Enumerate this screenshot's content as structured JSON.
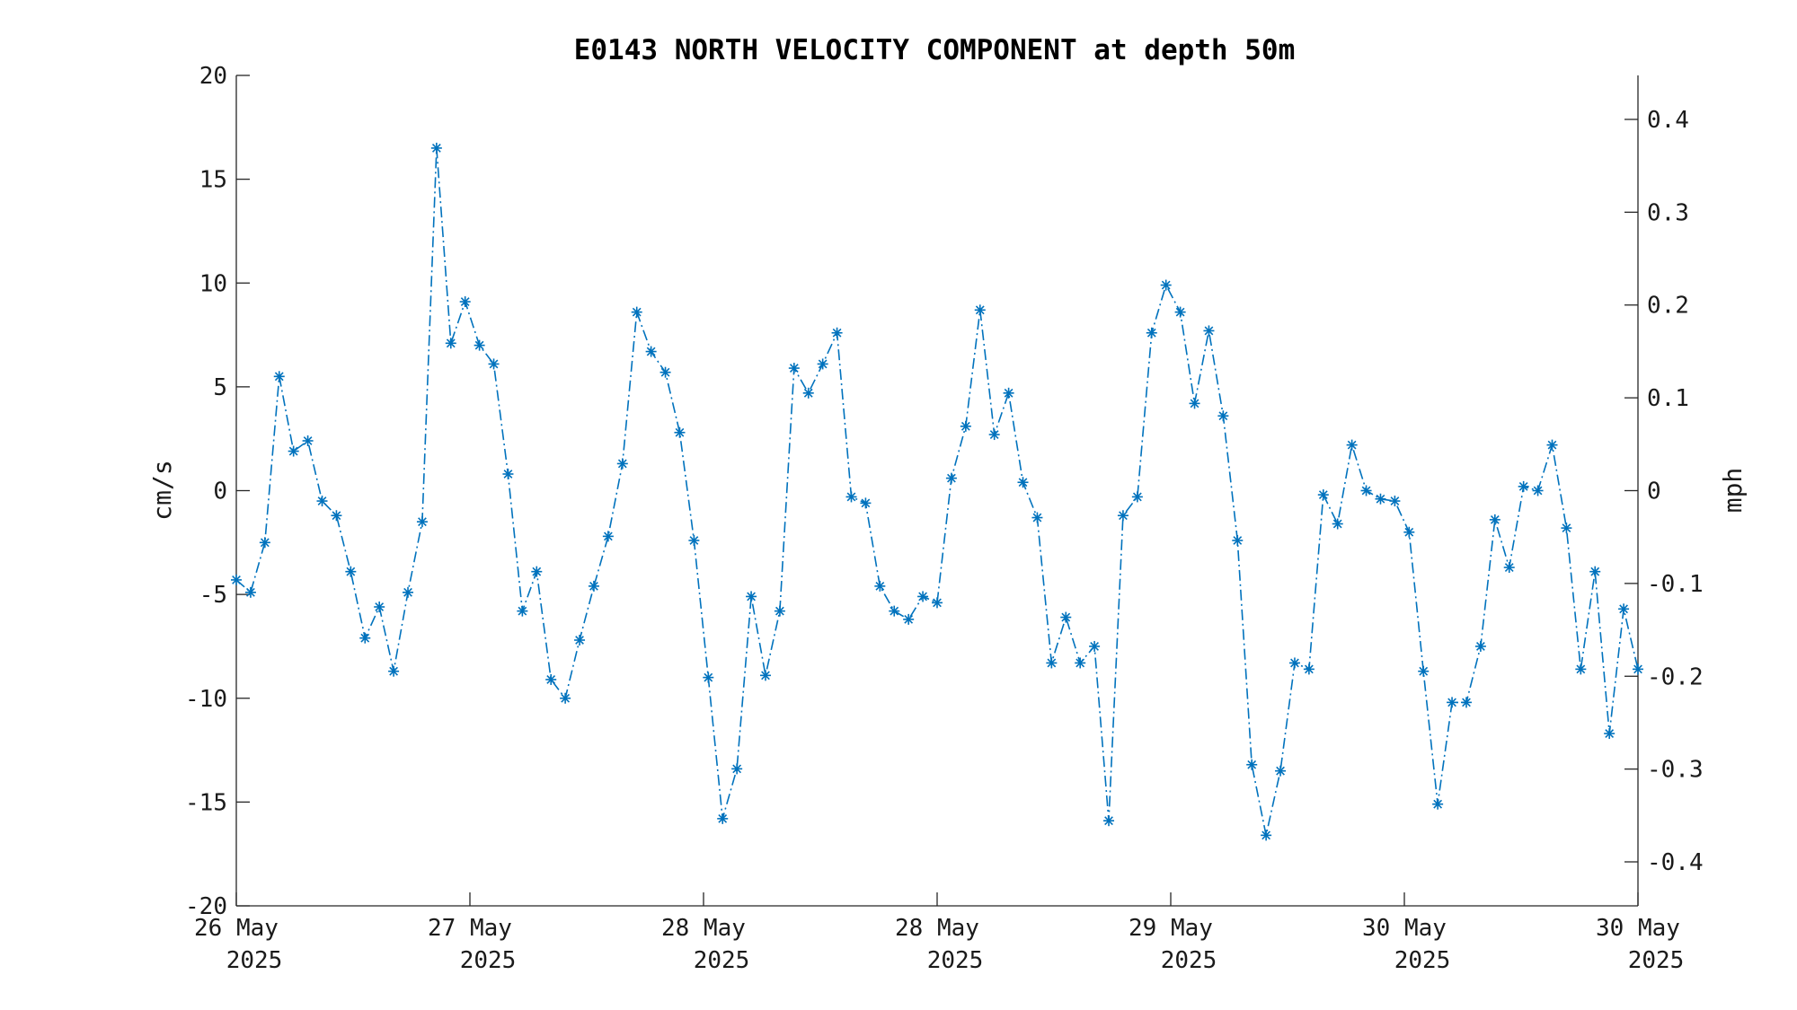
{
  "chart_data": {
    "type": "line",
    "title": "E0143 NORTH VELOCITY COMPONENT at depth 50m",
    "ylabel": "cm/s",
    "y2label": "mph",
    "ylim": [
      -20,
      20
    ],
    "y2lim": [
      -0.4474,
      0.4474
    ],
    "yticks": [
      "20",
      "15",
      "10",
      "5",
      "0",
      "-5",
      "-10",
      "-15",
      "-20"
    ],
    "y2ticks": [
      "0.4",
      "0.3",
      "0.2",
      "0.1",
      "0",
      "-0.1",
      "-0.2",
      "-0.3",
      "-0.4"
    ],
    "xticks": [
      {
        "line1": "26 May",
        "line2": "2025"
      },
      {
        "line1": "27 May",
        "line2": "2025"
      },
      {
        "line1": "28 May",
        "line2": "2025"
      },
      {
        "line1": "28 May",
        "line2": "2025"
      },
      {
        "line1": "29 May",
        "line2": "2025"
      },
      {
        "line1": "30 May",
        "line2": "2025"
      },
      {
        "line1": "30 May",
        "line2": "2025"
      }
    ],
    "grid": false,
    "legend": "none",
    "line_color": "#0072BD",
    "marker": "asterisk",
    "line_style": "dash-dot",
    "series": [
      {
        "values": [
          -4.3,
          -4.9,
          -2.5,
          5.5,
          1.9,
          2.4,
          -0.5,
          -1.2,
          -3.9,
          -7.1,
          -5.6,
          -8.7,
          -4.9,
          -1.5,
          16.5,
          7.1,
          9.1,
          7.0,
          6.1,
          0.8,
          -5.8,
          -3.9,
          -9.1,
          -10.0,
          -7.2,
          -4.6,
          -2.2,
          1.3,
          8.6,
          6.7,
          5.7,
          2.8,
          -2.4,
          -9.0,
          -15.8,
          -13.4,
          -5.1,
          -8.9,
          -5.8,
          5.9,
          4.7,
          6.1,
          7.6,
          -0.3,
          -0.6,
          -4.6,
          -5.8,
          -6.2,
          -5.1,
          -5.4,
          0.6,
          3.1,
          8.7,
          2.7,
          4.7,
          0.4,
          -1.3,
          -8.3,
          -6.1,
          -8.3,
          -7.5,
          -15.9,
          -1.2,
          -0.3,
          7.6,
          9.9,
          8.6,
          4.2,
          7.7,
          3.6,
          -2.4,
          -13.2,
          -16.6,
          -13.5,
          -8.3,
          -8.6,
          -0.2,
          -1.6,
          2.2,
          0.0,
          -0.4,
          -0.5,
          -2.0,
          -8.7,
          -15.1,
          -10.2,
          -10.2,
          -7.5,
          -1.4,
          -3.7,
          0.2,
          0.0,
          2.2,
          -1.8,
          -8.6,
          -3.9,
          -11.7,
          -5.7,
          -8.6
        ]
      }
    ]
  }
}
